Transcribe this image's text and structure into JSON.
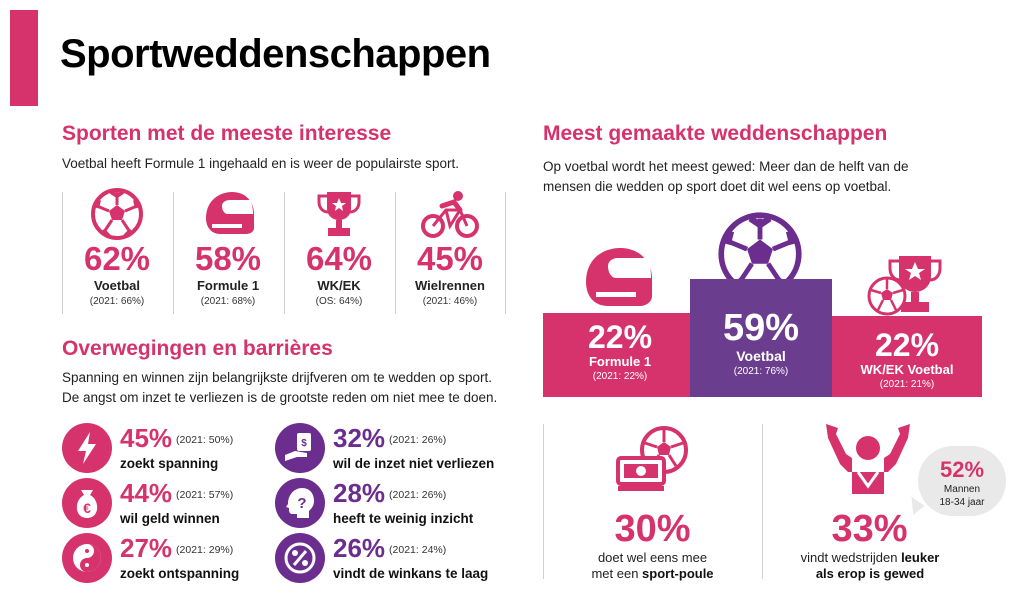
{
  "page_title": "Sportweddenschappen",
  "colors": {
    "accent": "#d6336c",
    "purple": "#6b2d8e",
    "podium_side": "#d6336c",
    "podium_center": "#6b3d8f"
  },
  "interest": {
    "title": "Sporten met de meeste interesse",
    "desc": "Voetbal heeft Formule 1 ingehaald en is weer de populairste sport.",
    "sports": [
      {
        "icon": "soccer-ball-icon",
        "pct": "62%",
        "name": "Voetbal",
        "prev": "(2021: 66%)"
      },
      {
        "icon": "racing-helmet-icon",
        "pct": "58%",
        "name": "Formule 1",
        "prev": "(2021: 68%)"
      },
      {
        "icon": "trophy-icon",
        "pct": "64%",
        "name": "WK/EK",
        "prev": "(OS: 64%)"
      },
      {
        "icon": "cyclist-icon",
        "pct": "45%",
        "name": "Wielrennen",
        "prev": "(2021: 46%)"
      }
    ]
  },
  "barriers": {
    "title": "Overwegingen en barrières",
    "desc_line1": "Spanning en winnen zijn belangrijkste drijfveren om te wedden op sport.",
    "desc_line2": "De angst om inzet te verliezen is de grootste reden om niet mee te doen.",
    "items": [
      {
        "icon": "lightning-icon",
        "pct": "45%",
        "prev": "(2021: 50%)",
        "label": "zoekt spanning"
      },
      {
        "icon": "money-bag-euro-icon",
        "pct": "44%",
        "prev": "(2021: 57%)",
        "label": "wil geld winnen"
      },
      {
        "icon": "yin-yang-icon",
        "pct": "27%",
        "prev": "(2021: 29%)",
        "label": "zoekt ontspanning"
      },
      {
        "icon": "hand-money-icon",
        "pct": "32%",
        "prev": "(2021: 26%)",
        "label": "wil de inzet niet verliezen"
      },
      {
        "icon": "question-head-icon",
        "pct": "28%",
        "prev": "(2021: 26%)",
        "label": "heeft te weinig inzicht"
      },
      {
        "icon": "percent-icon",
        "pct": "26%",
        "prev": "(2021: 24%)",
        "label": "vindt de winkans te laag"
      }
    ]
  },
  "bets": {
    "title": "Meest gemaakte weddenschappen",
    "desc_line1": "Op voetbal wordt het meest gewed: Meer dan de helft van de",
    "desc_line2": "mensen die wedden op sport doet dit wel eens op voetbal.",
    "podium": [
      {
        "icon": "racing-helmet-icon",
        "pct": "22%",
        "name": "Formule 1",
        "prev": "(2021: 22%)"
      },
      {
        "icon": "soccer-ball-icon",
        "pct": "59%",
        "name": "Voetbal",
        "prev": "(2021: 76%)"
      },
      {
        "icon": "trophy-ball-icon",
        "pct": "22%",
        "name": "WK/EK Voetbal",
        "prev": "(2021: 21%)"
      }
    ]
  },
  "poule": {
    "icon": "money-ball-icon",
    "pct": "30%",
    "line1": "doet wel eens mee",
    "line2_pre": "met een ",
    "line2_bold": "sport-poule"
  },
  "fun": {
    "icon": "cheering-fan-icon",
    "pct": "33%",
    "line1_pre": "vindt wedstrijden ",
    "line1_bold": "leuker",
    "line2_bold": "als erop is gewed",
    "bubble": {
      "pct": "52%",
      "line1": "Mannen",
      "line2": "18-34 jaar"
    }
  }
}
